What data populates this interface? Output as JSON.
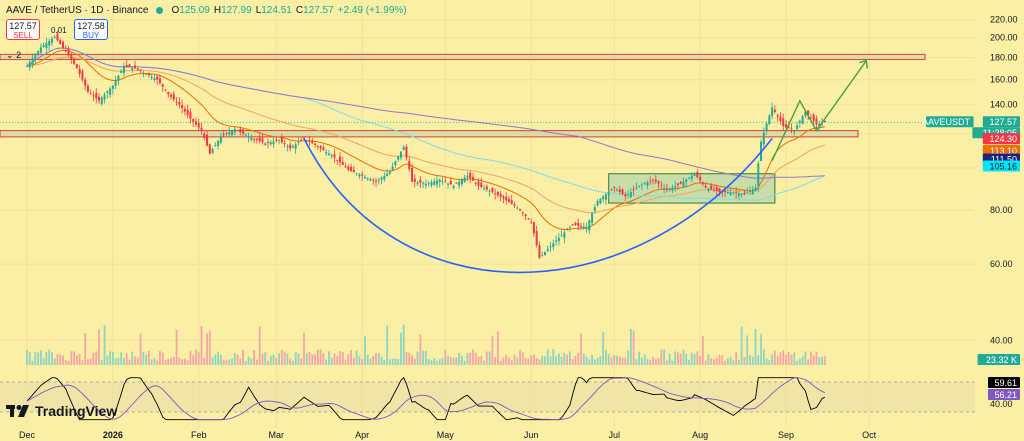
{
  "header": {
    "symbol": "AAVE / TetherUS · 1D · Binance",
    "open_label": "O",
    "open": "125.09",
    "high_label": "H",
    "high": "127.99",
    "low_label": "L",
    "low": "124.51",
    "close_label": "C",
    "close": "127.57",
    "change": "+2.49 (+1.99%)"
  },
  "trade": {
    "sell_price": "127.57",
    "sell_label": "SELL",
    "spread": "0.01",
    "buy_price": "127.58",
    "buy_label": "BUY"
  },
  "indicators_count": "2",
  "logo_text": "TradingView",
  "colors": {
    "background": "#fbeea5",
    "up": "#22ab94",
    "down": "#f23645",
    "cup_curve": "#2962ff",
    "projection": "#43a047",
    "zone_border": "#e53935",
    "zone_fill": "#b7d7a8",
    "ema_short": "#ef6c00",
    "ema_mid": "#f4a460",
    "ma_200": "#9575cd",
    "ma_100": "#80deea",
    "rsi": "#000000",
    "rsi_ma": "#7e57c2"
  },
  "chart_data": {
    "type": "candlestick",
    "title": "AAVE / TetherUS · 1D · Binance",
    "y_axis": {
      "scale": "log",
      "ticks": [
        "220.00",
        "200.00",
        "180.00",
        "160.00",
        "140.00",
        "120.00",
        "100.00",
        "80.00",
        "60.00",
        "40.00"
      ],
      "range": [
        38,
        228
      ]
    },
    "x_axis": {
      "ticks": [
        "Dec",
        "2026",
        "Feb",
        "Mar",
        "Apr",
        "May",
        "Jun",
        "Jul",
        "Aug",
        "Sep",
        "Oct"
      ]
    },
    "price_path": [
      {
        "date": "Dec 01",
        "close": 172
      },
      {
        "date": "Dec 06",
        "close": 190
      },
      {
        "date": "Dec 11",
        "close": 201
      },
      {
        "date": "Dec 15",
        "close": 186
      },
      {
        "date": "Dec 19",
        "close": 170
      },
      {
        "date": "Dec 23",
        "close": 150
      },
      {
        "date": "Dec 27",
        "close": 143
      },
      {
        "date": "Jan 01",
        "close": 155
      },
      {
        "date": "Jan 05",
        "close": 172
      },
      {
        "date": "Jan 09",
        "close": 170
      },
      {
        "date": "Jan 13",
        "close": 165
      },
      {
        "date": "Jan 17",
        "close": 160
      },
      {
        "date": "Jan 21",
        "close": 148
      },
      {
        "date": "Jan 25",
        "close": 140
      },
      {
        "date": "Jan 29",
        "close": 130
      },
      {
        "date": "Feb 02",
        "close": 122
      },
      {
        "date": "Feb 05",
        "close": 108
      },
      {
        "date": "Feb 09",
        "close": 118
      },
      {
        "date": "Feb 14",
        "close": 123
      },
      {
        "date": "Feb 19",
        "close": 118
      },
      {
        "date": "Feb 25",
        "close": 114
      },
      {
        "date": "Mar 02",
        "close": 116
      },
      {
        "date": "Mar 06",
        "close": 111
      },
      {
        "date": "Mar 11",
        "close": 117
      },
      {
        "date": "Mar 16",
        "close": 112
      },
      {
        "date": "Mar 21",
        "close": 107
      },
      {
        "date": "Mar 27",
        "close": 99
      },
      {
        "date": "Apr 01",
        "close": 96
      },
      {
        "date": "Apr 06",
        "close": 93
      },
      {
        "date": "Apr 11",
        "close": 98
      },
      {
        "date": "Apr 16",
        "close": 112
      },
      {
        "date": "Apr 19",
        "close": 93
      },
      {
        "date": "Apr 24",
        "close": 92
      },
      {
        "date": "Apr 29",
        "close": 94
      },
      {
        "date": "May 04",
        "close": 91
      },
      {
        "date": "May 09",
        "close": 96
      },
      {
        "date": "May 13",
        "close": 91
      },
      {
        "date": "May 18",
        "close": 88
      },
      {
        "date": "May 22",
        "close": 85
      },
      {
        "date": "May 27",
        "close": 81
      },
      {
        "date": "Jun 01",
        "close": 75
      },
      {
        "date": "Jun 04",
        "close": 62
      },
      {
        "date": "Jun 08",
        "close": 66
      },
      {
        "date": "Jun 12",
        "close": 70
      },
      {
        "date": "Jun 16",
        "close": 74
      },
      {
        "date": "Jun 21",
        "close": 73
      },
      {
        "date": "Jun 25",
        "close": 84
      },
      {
        "date": "Jul 01",
        "close": 90
      },
      {
        "date": "Jul 05",
        "close": 86
      },
      {
        "date": "Jul 10",
        "close": 91
      },
      {
        "date": "Jul 15",
        "close": 94
      },
      {
        "date": "Jul 20",
        "close": 89
      },
      {
        "date": "Jul 25",
        "close": 92
      },
      {
        "date": "Jul 30",
        "close": 97
      },
      {
        "date": "Aug 03",
        "close": 90
      },
      {
        "date": "Aug 08",
        "close": 88
      },
      {
        "date": "Aug 12",
        "close": 88
      },
      {
        "date": "Aug 17",
        "close": 87
      },
      {
        "date": "Aug 21",
        "close": 90
      },
      {
        "date": "Aug 23",
        "close": 115
      },
      {
        "date": "Aug 27",
        "close": 138
      },
      {
        "date": "Aug 31",
        "close": 125
      },
      {
        "date": "Sep 04",
        "close": 122
      },
      {
        "date": "Sep 08",
        "close": 135
      },
      {
        "date": "Sep 12",
        "close": 126
      },
      {
        "date": "Sep 15",
        "close": 127.57
      }
    ],
    "volume_label": "23.32 K",
    "price_labels": [
      {
        "text": "AAVEUSDT",
        "type": "name"
      },
      {
        "text": "127.57",
        "type": "current"
      },
      {
        "text": "11:38:05",
        "type": "countdown"
      },
      {
        "text": "124.30",
        "type": "red"
      },
      {
        "text": "113.10",
        "type": "orange"
      },
      {
        "text": "111.50",
        "type": "navy"
      },
      {
        "text": "105.16",
        "type": "cyan"
      }
    ],
    "zones": [
      {
        "name": "upper-resistance",
        "low": 178,
        "high": 183
      },
      {
        "name": "breakout-level",
        "low": 118,
        "high": 122
      },
      {
        "name": "consolidation",
        "low": 83,
        "high": 97,
        "start": "Jun 29",
        "end": "Aug 28"
      }
    ],
    "rsi": {
      "value": "59.61",
      "ma": "56.21",
      "ticks": [
        "40.00"
      ]
    }
  }
}
